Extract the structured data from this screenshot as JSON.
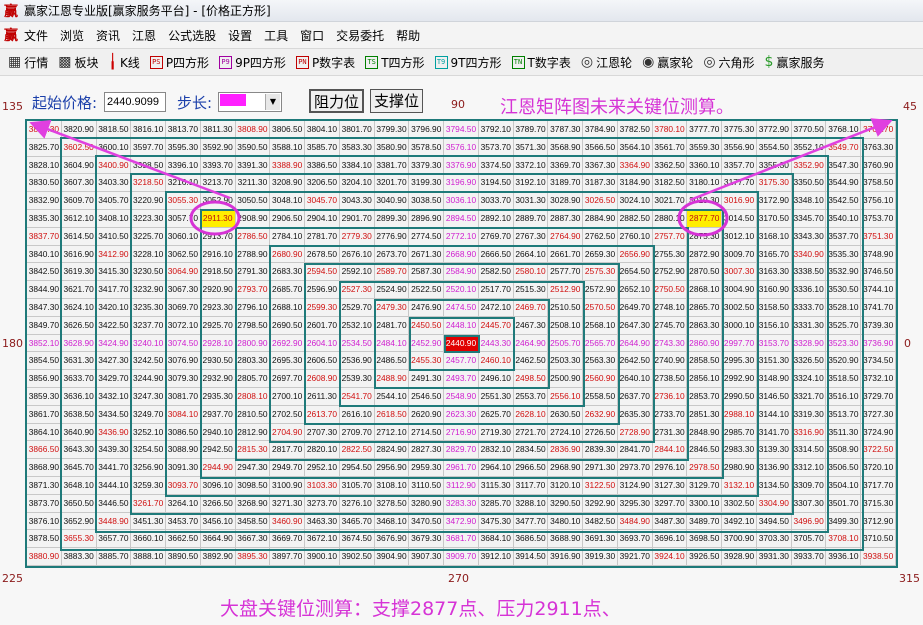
{
  "window": {
    "title": "赢家江恩专业版[赢家服务平台] - [价格正方形]",
    "logo": "赢"
  },
  "menu": [
    "文件",
    "浏览",
    "资讯",
    "江恩",
    "公式选股",
    "设置",
    "工具",
    "窗口",
    "交易委托",
    "帮助"
  ],
  "toolbar": [
    {
      "label": "行情",
      "icon": "quote-table-icon"
    },
    {
      "label": "板块",
      "icon": "sector-blocks-icon"
    },
    {
      "label": "K线",
      "icon": "candlestick-icon"
    },
    {
      "label": "P四方形",
      "icon": "PS",
      "color": "#c00000"
    },
    {
      "label": "9P四方形",
      "icon": "P9",
      "color": "#a000a0"
    },
    {
      "label": "P数字表",
      "icon": "PN",
      "color": "#c00000"
    },
    {
      "label": "T四方形",
      "icon": "TS",
      "color": "#008000"
    },
    {
      "label": "9T四方形",
      "icon": "T9",
      "color": "#00a0a0"
    },
    {
      "label": "T数字表",
      "icon": "TN",
      "color": "#008000"
    },
    {
      "label": "江恩轮",
      "icon": "gann-wheel-icon"
    },
    {
      "label": "赢家轮",
      "icon": "winner-wheel-icon"
    },
    {
      "label": "六角形",
      "icon": "hexagon-icon"
    },
    {
      "label": "赢家服务",
      "icon": "dollar-icon"
    }
  ],
  "controls": {
    "start_price_label": "起始价格:",
    "start_price_value": "2440.9099",
    "step_label": "步长:",
    "step_value": "",
    "resistance_button": "阻力位",
    "support_button": "支撑位"
  },
  "headline": "江恩矩阵图未来关键位测算。",
  "degrees": {
    "top_left": "135",
    "top_center": "90",
    "top_right": "45",
    "mid_left": "180",
    "mid_right": "0",
    "bottom_left": "225",
    "bottom_center": "270",
    "bottom_right": "315"
  },
  "caption": "大盘关键位测算：支撑2877点、压力2911点、",
  "colors": {
    "ring_border": "#1f7a7a",
    "angle_red": "#d01010",
    "axis_magenta": "#d020d0",
    "center_bg": "#e00000",
    "highlight_bg": "#ffee00",
    "annotation": "#e040e0"
  },
  "highlighted": [
    "2911.30",
    "2877.70"
  ],
  "center_value": "2440.90",
  "grid": [
    [
      "3823.30",
      "3820.90",
      "3818.50",
      "3816.10",
      "3813.70",
      "3811.30",
      "3808.90",
      "3806.50",
      "3804.10",
      "3801.70",
      "3799.30",
      "3796.90",
      "3794.50",
      "3792.10",
      "3789.70",
      "3787.30",
      "3784.90",
      "3782.50",
      "3780.10",
      "3777.70",
      "3775.30",
      "3772.90",
      "3770.50",
      "3768.10",
      "3765.70"
    ],
    [
      "3825.70",
      "3602.50",
      "3600.10",
      "3597.70",
      "3595.30",
      "3592.90",
      "3590.50",
      "3588.10",
      "3585.70",
      "3583.30",
      "3580.90",
      "3578.50",
      "3576.10",
      "3573.70",
      "3571.30",
      "3568.90",
      "3566.50",
      "3564.10",
      "3561.70",
      "3559.30",
      "3556.90",
      "3554.50",
      "3552.10",
      "3549.70",
      "3763.30"
    ],
    [
      "3828.10",
      "3604.90",
      "3400.90",
      "3398.50",
      "3396.10",
      "3393.70",
      "3391.30",
      "3388.90",
      "3386.50",
      "3384.10",
      "3381.70",
      "3379.30",
      "3376.90",
      "3374.50",
      "3372.10",
      "3369.70",
      "3367.30",
      "3364.90",
      "3362.50",
      "3360.10",
      "3357.70",
      "3355.30",
      "3352.90",
      "3547.30",
      "3760.90"
    ],
    [
      "3830.50",
      "3607.30",
      "3403.30",
      "3218.50",
      "3216.10",
      "3213.70",
      "3211.30",
      "3208.90",
      "3206.50",
      "3204.10",
      "3201.70",
      "3199.30",
      "3196.90",
      "3194.50",
      "3192.10",
      "3189.70",
      "3187.30",
      "3184.90",
      "3182.50",
      "3180.10",
      "3177.70",
      "3175.30",
      "3350.50",
      "3544.90",
      "3758.50"
    ],
    [
      "3832.90",
      "3609.70",
      "3405.70",
      "3220.90",
      "3055.30",
      "3052.90",
      "3050.50",
      "3048.10",
      "3045.70",
      "3043.30",
      "3040.90",
      "3038.50",
      "3036.10",
      "3033.70",
      "3031.30",
      "3028.90",
      "3026.50",
      "3024.10",
      "3021.70",
      "3019.30",
      "3016.90",
      "3172.90",
      "3348.10",
      "3542.50",
      "3756.10"
    ],
    [
      "3835.30",
      "3612.10",
      "3408.10",
      "3223.30",
      "3057.70",
      "2911.30",
      "2908.90",
      "2906.50",
      "2904.10",
      "2901.70",
      "2899.30",
      "2896.90",
      "2894.50",
      "2892.10",
      "2889.70",
      "2887.30",
      "2884.90",
      "2882.50",
      "2880.10",
      "2877.70",
      "3014.50",
      "3170.50",
      "3345.70",
      "3540.10",
      "3753.70"
    ],
    [
      "3837.70",
      "3614.50",
      "3410.50",
      "3225.70",
      "3060.10",
      "2913.70",
      "2786.50",
      "2784.10",
      "2781.70",
      "2779.30",
      "2776.90",
      "2774.50",
      "2772.10",
      "2769.70",
      "2767.30",
      "2764.90",
      "2762.50",
      "2760.10",
      "2757.70",
      "2875.30",
      "3012.10",
      "3168.10",
      "3343.30",
      "3537.70",
      "3751.30"
    ],
    [
      "3840.10",
      "3616.90",
      "3412.90",
      "3228.10",
      "3062.50",
      "2916.10",
      "2788.90",
      "2680.90",
      "2678.50",
      "2676.10",
      "2673.70",
      "2671.30",
      "2668.90",
      "2666.50",
      "2664.10",
      "2661.70",
      "2659.30",
      "2656.90",
      "2755.30",
      "2872.90",
      "3009.70",
      "3165.70",
      "3340.90",
      "3535.30",
      "3748.90"
    ],
    [
      "3842.50",
      "3619.30",
      "3415.30",
      "3230.50",
      "3064.90",
      "2918.50",
      "2791.30",
      "2683.30",
      "2594.50",
      "2592.10",
      "2589.70",
      "2587.30",
      "2584.90",
      "2582.50",
      "2580.10",
      "2577.70",
      "2575.30",
      "2654.50",
      "2752.90",
      "2870.50",
      "3007.30",
      "3163.30",
      "3338.50",
      "3532.90",
      "3746.50"
    ],
    [
      "3844.90",
      "3621.70",
      "3417.70",
      "3232.90",
      "3067.30",
      "2920.90",
      "2793.70",
      "2685.70",
      "2596.90",
      "2527.30",
      "2524.90",
      "2522.50",
      "2520.10",
      "2517.70",
      "2515.30",
      "2512.90",
      "2572.90",
      "2652.10",
      "2750.50",
      "2868.10",
      "3004.90",
      "3160.90",
      "3336.10",
      "3530.50",
      "3744.10"
    ],
    [
      "3847.30",
      "3624.10",
      "3420.10",
      "3235.30",
      "3069.70",
      "2923.30",
      "2796.10",
      "2688.10",
      "2599.30",
      "2529.70",
      "2479.30",
      "2476.90",
      "2474.50",
      "2472.10",
      "2469.70",
      "2510.50",
      "2570.50",
      "2649.70",
      "2748.10",
      "2865.70",
      "3002.50",
      "3158.50",
      "3333.70",
      "3528.10",
      "3741.70"
    ],
    [
      "3849.70",
      "3626.50",
      "3422.50",
      "3237.70",
      "3072.10",
      "2925.70",
      "2798.50",
      "2690.50",
      "2601.70",
      "2532.10",
      "2481.70",
      "2450.50",
      "2448.10",
      "2445.70",
      "2467.30",
      "2508.10",
      "2568.10",
      "2647.30",
      "2745.70",
      "2863.30",
      "3000.10",
      "3156.10",
      "3331.30",
      "3525.70",
      "3739.30"
    ],
    [
      "3852.10",
      "3628.90",
      "3424.90",
      "3240.10",
      "3074.50",
      "2928.10",
      "2800.90",
      "2692.90",
      "2604.10",
      "2534.50",
      "2484.10",
      "2452.90",
      "2440.90",
      "2443.30",
      "2464.90",
      "2505.70",
      "2565.70",
      "2644.90",
      "2743.30",
      "2860.90",
      "2997.70",
      "3153.70",
      "3328.90",
      "3523.30",
      "3736.90"
    ],
    [
      "3854.50",
      "3631.30",
      "3427.30",
      "3242.50",
      "3076.90",
      "2930.50",
      "2803.30",
      "2695.30",
      "2606.50",
      "2536.90",
      "2486.50",
      "2455.30",
      "2457.70",
      "2460.10",
      "2462.50",
      "2503.30",
      "2563.30",
      "2642.50",
      "2740.90",
      "2858.50",
      "2995.30",
      "3151.30",
      "3326.50",
      "3520.90",
      "3734.50"
    ],
    [
      "3856.90",
      "3633.70",
      "3429.70",
      "3244.90",
      "3079.30",
      "2932.90",
      "2805.70",
      "2697.70",
      "2608.90",
      "2539.30",
      "2488.90",
      "2491.30",
      "2493.70",
      "2496.10",
      "2498.50",
      "2500.90",
      "2560.90",
      "2640.10",
      "2738.50",
      "2856.10",
      "2992.90",
      "3148.90",
      "3324.10",
      "3518.50",
      "3732.10"
    ],
    [
      "3859.30",
      "3636.10",
      "3432.10",
      "3247.30",
      "3081.70",
      "2935.30",
      "2808.10",
      "2700.10",
      "2611.30",
      "2541.70",
      "2544.10",
      "2546.50",
      "2548.90",
      "2551.30",
      "2553.70",
      "2556.10",
      "2558.50",
      "2637.70",
      "2736.10",
      "2853.70",
      "2990.50",
      "3146.50",
      "3321.70",
      "3516.10",
      "3729.70"
    ],
    [
      "3861.70",
      "3638.50",
      "3434.50",
      "3249.70",
      "3084.10",
      "2937.70",
      "2810.50",
      "2702.50",
      "2613.70",
      "2616.10",
      "2618.50",
      "2620.90",
      "2623.30",
      "2625.70",
      "2628.10",
      "2630.50",
      "2632.90",
      "2635.30",
      "2733.70",
      "2851.30",
      "2988.10",
      "3144.10",
      "3319.30",
      "3513.70",
      "3727.30"
    ],
    [
      "3864.10",
      "3640.90",
      "3436.90",
      "3252.10",
      "3086.50",
      "2940.10",
      "2812.90",
      "2704.90",
      "2707.30",
      "2709.70",
      "2712.10",
      "2714.50",
      "2716.90",
      "2719.30",
      "2721.70",
      "2724.10",
      "2726.50",
      "2728.90",
      "2731.30",
      "2848.90",
      "2985.70",
      "3141.70",
      "3316.90",
      "3511.30",
      "3724.90"
    ],
    [
      "3866.50",
      "3643.30",
      "3439.30",
      "3254.50",
      "3088.90",
      "2942.50",
      "2815.30",
      "2817.70",
      "2820.10",
      "2822.50",
      "2824.90",
      "2827.30",
      "2829.70",
      "2832.10",
      "2834.50",
      "2836.90",
      "2839.30",
      "2841.70",
      "2844.10",
      "2846.50",
      "2983.30",
      "3139.30",
      "3314.50",
      "3508.90",
      "3722.50"
    ],
    [
      "3868.90",
      "3645.70",
      "3441.70",
      "3256.90",
      "3091.30",
      "2944.90",
      "2947.30",
      "2949.70",
      "2952.10",
      "2954.50",
      "2956.90",
      "2959.30",
      "2961.70",
      "2964.10",
      "2966.50",
      "2968.90",
      "2971.30",
      "2973.70",
      "2976.10",
      "2978.50",
      "2980.90",
      "3136.90",
      "3312.10",
      "3506.50",
      "3720.10"
    ],
    [
      "3871.30",
      "3648.10",
      "3444.10",
      "3259.30",
      "3093.70",
      "3096.10",
      "3098.50",
      "3100.90",
      "3103.30",
      "3105.70",
      "3108.10",
      "3110.50",
      "3112.90",
      "3115.30",
      "3117.70",
      "3120.10",
      "3122.50",
      "3124.90",
      "3127.30",
      "3129.70",
      "3132.10",
      "3134.50",
      "3309.70",
      "3504.10",
      "3717.70"
    ],
    [
      "3873.70",
      "3650.50",
      "3446.50",
      "3261.70",
      "3264.10",
      "3266.50",
      "3268.90",
      "3271.30",
      "3273.70",
      "3276.10",
      "3278.50",
      "3280.90",
      "3283.30",
      "3285.70",
      "3288.10",
      "3290.50",
      "3292.90",
      "3295.30",
      "3297.70",
      "3300.10",
      "3302.50",
      "3304.90",
      "3307.30",
      "3501.70",
      "3715.30"
    ],
    [
      "3876.10",
      "3652.90",
      "3448.90",
      "3451.30",
      "3453.70",
      "3456.10",
      "3458.50",
      "3460.90",
      "3463.30",
      "3465.70",
      "3468.10",
      "3470.50",
      "3472.90",
      "3475.30",
      "3477.70",
      "3480.10",
      "3482.50",
      "3484.90",
      "3487.30",
      "3489.70",
      "3492.10",
      "3494.50",
      "3496.90",
      "3499.30",
      "3712.90"
    ],
    [
      "3878.50",
      "3655.30",
      "3657.70",
      "3660.10",
      "3662.50",
      "3664.90",
      "3667.30",
      "3669.70",
      "3672.10",
      "3674.50",
      "3676.90",
      "3679.30",
      "3681.70",
      "3684.10",
      "3686.50",
      "3688.90",
      "3691.30",
      "3693.70",
      "3696.10",
      "3698.50",
      "3700.90",
      "3703.30",
      "3705.70",
      "3708.10",
      "3710.50"
    ],
    [
      "3880.90",
      "3883.30",
      "3885.70",
      "3888.10",
      "3890.50",
      "3892.90",
      "3895.30",
      "3897.70",
      "3900.10",
      "3902.50",
      "3904.90",
      "3907.30",
      "3909.70",
      "3912.10",
      "3914.50",
      "3916.90",
      "3919.30",
      "3921.70",
      "3924.10",
      "3926.50",
      "3928.90",
      "3931.30",
      "3933.70",
      "3936.10",
      "3938.50"
    ]
  ]
}
